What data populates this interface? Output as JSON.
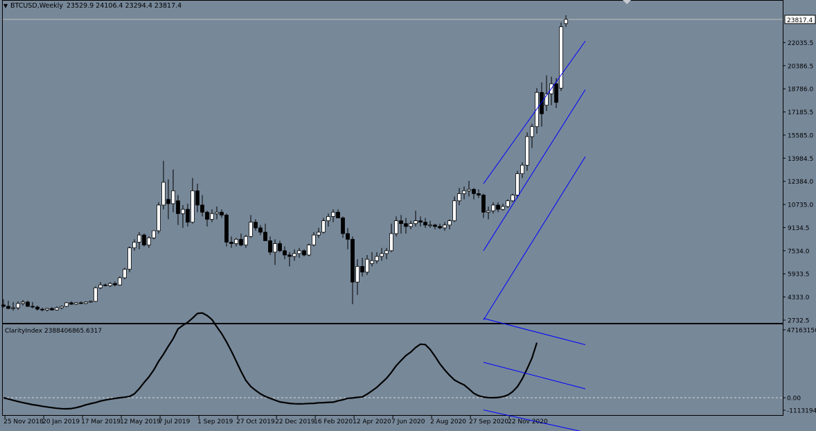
{
  "window": {
    "symbol_label": "BTCUSD,Weekly",
    "ohlc_label": "23529.9 24106.4 23294.4 23817.4",
    "current_price_label": "23817.4"
  },
  "indicator": {
    "label": "ClarityIndex 2388406865.6317",
    "scale_labels": [
      "47163150",
      "0.00",
      "-1113194"
    ]
  },
  "colors": {
    "background": "#778899",
    "grid_text": "#000000",
    "channel": "#0000ff",
    "bull_candle": "#ffffff",
    "bear_candle": "#000000",
    "indicator_line": "#000000"
  },
  "chart_data": [
    {
      "type": "candlestick",
      "title": "BTCUSD,Weekly",
      "ylim": [
        2732.5,
        23817.4
      ],
      "y_ticks": [
        "23817.4",
        "22035.5",
        "20386.5",
        "18786.0",
        "17185.5",
        "15585.0",
        "13984.5",
        "12384.0",
        "10735.0",
        "9134.5",
        "7534.0",
        "5933.5",
        "4333.0",
        "2732.5"
      ],
      "x_tick_labels": [
        "25 Nov 2018",
        "20 Jan 2019",
        "17 Mar 2019",
        "12 May 2019",
        "7 Jul 2019",
        "1 Sep 2019",
        "27 Oct 2019",
        "22 Dec 2019",
        "16 Feb 2020",
        "12 Apr 2020",
        "7 Jun 2020",
        "2 Aug 2020",
        "27 Sep 2020",
        "22 Nov 2020"
      ],
      "candles": [
        {
          "o": 3800,
          "h": 4200,
          "l": 3600,
          "c": 3700
        },
        {
          "o": 3700,
          "h": 4100,
          "l": 3500,
          "c": 3550
        },
        {
          "o": 3550,
          "h": 4000,
          "l": 3400,
          "c": 3600
        },
        {
          "o": 3600,
          "h": 4050,
          "l": 3450,
          "c": 3900
        },
        {
          "o": 3900,
          "h": 4150,
          "l": 3750,
          "c": 4000
        },
        {
          "o": 4000,
          "h": 4100,
          "l": 3650,
          "c": 3700
        },
        {
          "o": 3700,
          "h": 4000,
          "l": 3550,
          "c": 3650
        },
        {
          "o": 3650,
          "h": 3750,
          "l": 3400,
          "c": 3500
        },
        {
          "o": 3500,
          "h": 3600,
          "l": 3350,
          "c": 3450
        },
        {
          "o": 3450,
          "h": 3600,
          "l": 3350,
          "c": 3550
        },
        {
          "o": 3550,
          "h": 3650,
          "l": 3400,
          "c": 3450
        },
        {
          "o": 3450,
          "h": 3700,
          "l": 3400,
          "c": 3600
        },
        {
          "o": 3600,
          "h": 3750,
          "l": 3500,
          "c": 3700
        },
        {
          "o": 3700,
          "h": 4000,
          "l": 3650,
          "c": 3950
        },
        {
          "o": 3950,
          "h": 4050,
          "l": 3800,
          "c": 3850
        },
        {
          "o": 3850,
          "h": 4000,
          "l": 3800,
          "c": 3950
        },
        {
          "o": 3950,
          "h": 4050,
          "l": 3850,
          "c": 3900
        },
        {
          "o": 3900,
          "h": 4050,
          "l": 3850,
          "c": 4000
        },
        {
          "o": 4000,
          "h": 4100,
          "l": 3950,
          "c": 4050
        },
        {
          "o": 4050,
          "h": 5100,
          "l": 4000,
          "c": 5000
        },
        {
          "o": 5000,
          "h": 5400,
          "l": 4900,
          "c": 5200
        },
        {
          "o": 5200,
          "h": 5300,
          "l": 5100,
          "c": 5150
        },
        {
          "o": 5150,
          "h": 5400,
          "l": 5050,
          "c": 5300
        },
        {
          "o": 5300,
          "h": 5450,
          "l": 5100,
          "c": 5200
        },
        {
          "o": 5200,
          "h": 5800,
          "l": 5150,
          "c": 5700
        },
        {
          "o": 5700,
          "h": 6400,
          "l": 5600,
          "c": 6300
        },
        {
          "o": 6300,
          "h": 7900,
          "l": 6100,
          "c": 7800
        },
        {
          "o": 7800,
          "h": 8400,
          "l": 7600,
          "c": 8200
        },
        {
          "o": 8200,
          "h": 8900,
          "l": 7700,
          "c": 8700
        },
        {
          "o": 8700,
          "h": 8800,
          "l": 7900,
          "c": 8000
        },
        {
          "o": 8000,
          "h": 8600,
          "l": 7800,
          "c": 8500
        },
        {
          "o": 8500,
          "h": 9000,
          "l": 8400,
          "c": 9000
        },
        {
          "o": 9000,
          "h": 11000,
          "l": 8800,
          "c": 10800
        },
        {
          "o": 10800,
          "h": 13900,
          "l": 10500,
          "c": 12400
        },
        {
          "o": 11200,
          "h": 12600,
          "l": 9800,
          "c": 10900
        },
        {
          "o": 10900,
          "h": 13300,
          "l": 10300,
          "c": 11800
        },
        {
          "o": 11100,
          "h": 11500,
          "l": 9400,
          "c": 10200
        },
        {
          "o": 10200,
          "h": 10800,
          "l": 9200,
          "c": 10500
        },
        {
          "o": 10500,
          "h": 10900,
          "l": 9300,
          "c": 9600
        },
        {
          "o": 9600,
          "h": 12700,
          "l": 9500,
          "c": 11800
        },
        {
          "o": 11800,
          "h": 12300,
          "l": 10300,
          "c": 10800
        },
        {
          "o": 10800,
          "h": 11500,
          "l": 10000,
          "c": 10300
        },
        {
          "o": 10300,
          "h": 10400,
          "l": 9300,
          "c": 9800
        },
        {
          "o": 9800,
          "h": 10500,
          "l": 9600,
          "c": 10200
        },
        {
          "o": 10200,
          "h": 10700,
          "l": 9800,
          "c": 10300
        },
        {
          "o": 10300,
          "h": 10500,
          "l": 9900,
          "c": 10100
        },
        {
          "o": 10100,
          "h": 10200,
          "l": 7900,
          "c": 8200
        },
        {
          "o": 8200,
          "h": 8600,
          "l": 7800,
          "c": 8100
        },
        {
          "o": 8100,
          "h": 8500,
          "l": 7900,
          "c": 8400
        },
        {
          "o": 8400,
          "h": 8800,
          "l": 7900,
          "c": 8000
        },
        {
          "o": 8000,
          "h": 8700,
          "l": 7800,
          "c": 8600
        },
        {
          "o": 8600,
          "h": 10100,
          "l": 8500,
          "c": 9600
        },
        {
          "o": 9600,
          "h": 9800,
          "l": 9000,
          "c": 9200
        },
        {
          "o": 9200,
          "h": 9400,
          "l": 8700,
          "c": 8900
        },
        {
          "o": 8900,
          "h": 9500,
          "l": 8500,
          "c": 8300
        },
        {
          "o": 8300,
          "h": 8600,
          "l": 7300,
          "c": 7500
        },
        {
          "o": 7500,
          "h": 8400,
          "l": 6600,
          "c": 8100
        },
        {
          "o": 8100,
          "h": 8300,
          "l": 7500,
          "c": 7600
        },
        {
          "o": 7600,
          "h": 7900,
          "l": 7000,
          "c": 7300
        },
        {
          "o": 7300,
          "h": 7500,
          "l": 6500,
          "c": 7200
        },
        {
          "o": 7200,
          "h": 7700,
          "l": 6900,
          "c": 7400
        },
        {
          "o": 7400,
          "h": 7800,
          "l": 7100,
          "c": 7600
        },
        {
          "o": 7600,
          "h": 7700,
          "l": 7200,
          "c": 7300
        },
        {
          "o": 7300,
          "h": 8100,
          "l": 7200,
          "c": 8000
        },
        {
          "o": 8000,
          "h": 8900,
          "l": 7900,
          "c": 8700
        },
        {
          "o": 8700,
          "h": 9200,
          "l": 8500,
          "c": 8900
        },
        {
          "o": 8900,
          "h": 9900,
          "l": 8800,
          "c": 9700
        },
        {
          "o": 9700,
          "h": 10200,
          "l": 9300,
          "c": 10000
        },
        {
          "o": 10000,
          "h": 10500,
          "l": 9600,
          "c": 10300
        },
        {
          "o": 10300,
          "h": 10500,
          "l": 9900,
          "c": 9900
        },
        {
          "o": 9900,
          "h": 10000,
          "l": 8500,
          "c": 8800
        },
        {
          "o": 8800,
          "h": 9200,
          "l": 7700,
          "c": 8400
        },
        {
          "o": 8400,
          "h": 8600,
          "l": 3850,
          "c": 5400
        },
        {
          "o": 5400,
          "h": 7000,
          "l": 4500,
          "c": 6500
        },
        {
          "o": 6500,
          "h": 7100,
          "l": 5800,
          "c": 6100
        },
        {
          "o": 6100,
          "h": 7300,
          "l": 5900,
          "c": 7000
        },
        {
          "o": 6700,
          "h": 7500,
          "l": 6500,
          "c": 6900
        },
        {
          "o": 6900,
          "h": 7500,
          "l": 6700,
          "c": 7200
        },
        {
          "o": 7200,
          "h": 7800,
          "l": 6900,
          "c": 7400
        },
        {
          "o": 7400,
          "h": 7800,
          "l": 7000,
          "c": 7600
        },
        {
          "o": 7600,
          "h": 9500,
          "l": 7500,
          "c": 8800
        },
        {
          "o": 8800,
          "h": 10000,
          "l": 8600,
          "c": 9700
        },
        {
          "o": 9700,
          "h": 10100,
          "l": 8800,
          "c": 9500
        },
        {
          "o": 9500,
          "h": 9900,
          "l": 8800,
          "c": 9300
        },
        {
          "o": 9300,
          "h": 9700,
          "l": 9100,
          "c": 9500
        },
        {
          "o": 9500,
          "h": 10400,
          "l": 9300,
          "c": 9700
        },
        {
          "o": 9700,
          "h": 10000,
          "l": 9300,
          "c": 9600
        },
        {
          "o": 9600,
          "h": 9900,
          "l": 9200,
          "c": 9400
        },
        {
          "o": 9400,
          "h": 9700,
          "l": 9200,
          "c": 9400
        },
        {
          "o": 9400,
          "h": 9500,
          "l": 9100,
          "c": 9300
        },
        {
          "o": 9300,
          "h": 9500,
          "l": 9100,
          "c": 9200
        },
        {
          "o": 9200,
          "h": 9600,
          "l": 9000,
          "c": 9400
        },
        {
          "o": 9400,
          "h": 9800,
          "l": 9100,
          "c": 9700
        },
        {
          "o": 9700,
          "h": 11400,
          "l": 9600,
          "c": 11100
        },
        {
          "o": 11100,
          "h": 12000,
          "l": 10800,
          "c": 11600
        },
        {
          "o": 11600,
          "h": 12100,
          "l": 11200,
          "c": 11800
        },
        {
          "o": 11800,
          "h": 12500,
          "l": 11400,
          "c": 11900
        },
        {
          "o": 11900,
          "h": 12000,
          "l": 11200,
          "c": 11600
        },
        {
          "o": 11600,
          "h": 11900,
          "l": 11300,
          "c": 11500
        },
        {
          "o": 11500,
          "h": 11600,
          "l": 9900,
          "c": 10300
        },
        {
          "o": 10300,
          "h": 10700,
          "l": 9800,
          "c": 10400
        },
        {
          "o": 10400,
          "h": 11000,
          "l": 10200,
          "c": 10800
        },
        {
          "o": 10800,
          "h": 11000,
          "l": 10300,
          "c": 10500
        },
        {
          "o": 10500,
          "h": 10900,
          "l": 10400,
          "c": 10700
        },
        {
          "o": 10700,
          "h": 11200,
          "l": 10600,
          "c": 11100
        },
        {
          "o": 11100,
          "h": 11600,
          "l": 11000,
          "c": 11500
        },
        {
          "o": 11500,
          "h": 13200,
          "l": 11300,
          "c": 13000
        },
        {
          "o": 13000,
          "h": 13800,
          "l": 12700,
          "c": 13600
        },
        {
          "o": 13600,
          "h": 15900,
          "l": 13200,
          "c": 15600
        },
        {
          "o": 15600,
          "h": 16500,
          "l": 14800,
          "c": 16300
        },
        {
          "o": 16300,
          "h": 19000,
          "l": 15800,
          "c": 18700
        },
        {
          "o": 18700,
          "h": 19400,
          "l": 16300,
          "c": 17200
        },
        {
          "o": 17800,
          "h": 19900,
          "l": 17400,
          "c": 18600
        },
        {
          "o": 18600,
          "h": 19800,
          "l": 17800,
          "c": 19300
        },
        {
          "o": 19300,
          "h": 19700,
          "l": 17600,
          "c": 18000
        },
        {
          "o": 19000,
          "h": 23600,
          "l": 18800,
          "c": 23300
        },
        {
          "o": 23529.9,
          "h": 24106.4,
          "l": 23294.4,
          "c": 23817.4
        }
      ],
      "channel_lines": [
        {
          "from": [
            99,
            12300
          ],
          "to": [
            120,
            22300
          ]
        },
        {
          "from": [
            99,
            7600
          ],
          "to": [
            120,
            18900
          ]
        },
        {
          "from": [
            99,
            2750
          ],
          "to": [
            120,
            14200
          ]
        }
      ]
    },
    {
      "type": "line",
      "title": "ClarityIndex 2388406865.6317",
      "ylim": [
        -1113194,
        47163150
      ],
      "y_ticks": [
        "47163150",
        "0.00",
        "-1113194"
      ],
      "series": [
        {
          "values": [
            0.0,
            -0.85,
            -1.8,
            -2.6,
            -3.4,
            -4.1,
            -4.8,
            -5.3,
            -5.9,
            -6.4,
            -6.9,
            -7.3,
            -7.6,
            -7.7,
            -7.5,
            -6.9,
            -6.0,
            -4.9,
            -4.1,
            -3.3,
            -2.3,
            -1.6,
            -1.0,
            -0.5,
            0.0,
            0.4,
            0.9,
            2.7,
            6.3,
            10.6,
            14.5,
            19.3,
            25.3,
            30.2,
            35.8,
            41.0,
            47.8,
            50.3,
            52.4,
            55.3,
            58.5,
            58.9,
            57.1,
            54.3,
            49.3,
            44.5,
            38.8,
            32.4,
            25.4,
            18.3,
            12.0,
            7.8,
            5.1,
            2.7,
            0.9,
            -0.4,
            -1.7,
            -2.9,
            -3.4,
            -3.9,
            -4.2,
            -4.3,
            -4.2,
            -4.0,
            -3.9,
            -3.5,
            -3.4,
            -3.2,
            -3.1,
            -2.1,
            -1.4,
            -0.4,
            -0.2,
            0.3,
            0.6,
            2.5,
            4.8,
            7.2,
            10.4,
            13.5,
            17.6,
            22.3,
            25.9,
            29.3,
            31.7,
            34.9,
            37.2,
            36.9,
            33.5,
            28.8,
            23.6,
            19.3,
            15.6,
            12.3,
            10.5,
            8.9,
            6.1,
            3.1,
            1.4,
            0.5,
            0.1,
            0.0,
            0.2,
            0.7,
            1.9,
            4.2,
            7.7,
            13.2,
            20.1,
            27.6,
            38.2
          ]
        }
      ],
      "channel_lines": [
        {
          "from": [
            99,
            55.1
          ],
          "to": [
            120,
            36.8
          ]
        },
        {
          "from": [
            99,
            24.6
          ],
          "to": [
            120,
            6.2
          ]
        },
        {
          "from": [
            99,
            -8.5
          ],
          "to": [
            120,
            -24.0
          ]
        }
      ]
    }
  ]
}
